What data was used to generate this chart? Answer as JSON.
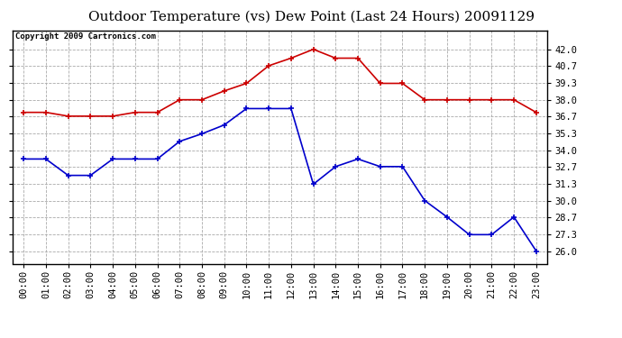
{
  "title": "Outdoor Temperature (vs) Dew Point (Last 24 Hours) 20091129",
  "copyright": "Copyright 2009 Cartronics.com",
  "hours": [
    "00:00",
    "01:00",
    "02:00",
    "03:00",
    "04:00",
    "05:00",
    "06:00",
    "07:00",
    "08:00",
    "09:00",
    "10:00",
    "11:00",
    "12:00",
    "13:00",
    "14:00",
    "15:00",
    "16:00",
    "17:00",
    "18:00",
    "19:00",
    "20:00",
    "21:00",
    "22:00",
    "23:00"
  ],
  "temp": [
    37.0,
    37.0,
    36.7,
    36.7,
    36.7,
    37.0,
    37.0,
    38.0,
    38.0,
    38.7,
    39.3,
    40.7,
    41.3,
    42.0,
    41.3,
    41.3,
    39.3,
    39.3,
    38.0,
    38.0,
    38.0,
    38.0,
    38.0,
    37.0
  ],
  "dew": [
    33.3,
    33.3,
    32.0,
    32.0,
    33.3,
    33.3,
    33.3,
    34.7,
    35.3,
    36.0,
    37.3,
    37.3,
    37.3,
    31.3,
    32.7,
    33.3,
    32.7,
    32.7,
    30.0,
    28.7,
    27.3,
    27.3,
    28.7,
    26.0
  ],
  "temp_color": "#cc0000",
  "dew_color": "#0000cc",
  "bg_color": "#ffffff",
  "plot_bg": "#ffffff",
  "grid_color": "#aaaaaa",
  "ylim_min": 25.0,
  "ylim_max": 43.5,
  "yticks": [
    26.0,
    27.3,
    28.7,
    30.0,
    31.3,
    32.7,
    34.0,
    35.3,
    36.7,
    38.0,
    39.3,
    40.7,
    42.0
  ],
  "title_fontsize": 11,
  "copyright_fontsize": 6.5,
  "tick_fontsize": 7.5
}
